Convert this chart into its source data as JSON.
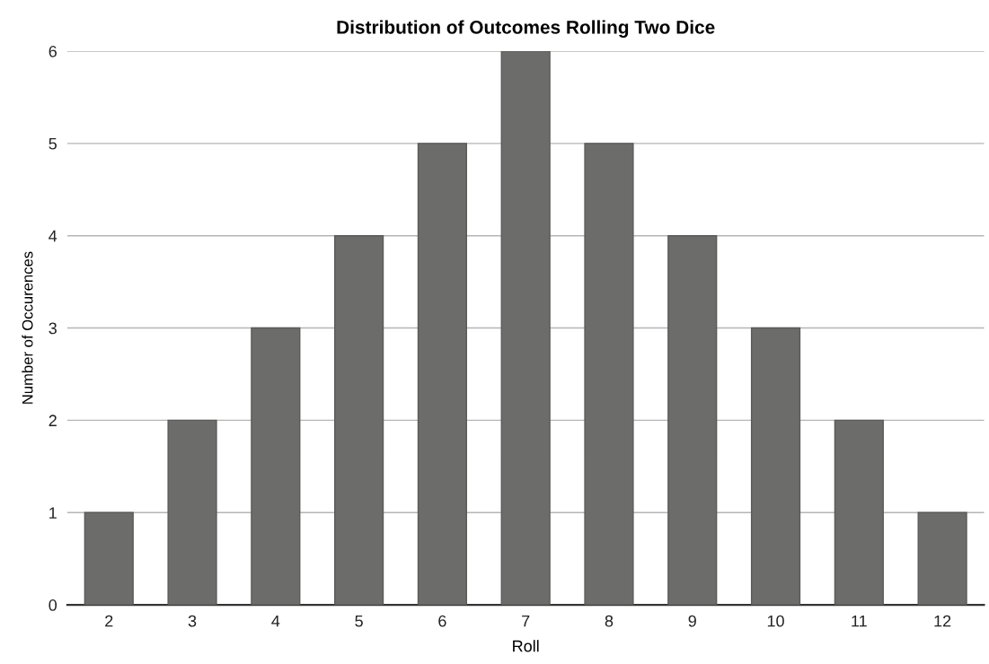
{
  "chart_data": {
    "type": "bar",
    "title": "Distribution of Outcomes Rolling Two Dice",
    "xlabel": "Roll",
    "ylabel": "Number of Occurences",
    "categories": [
      "2",
      "3",
      "4",
      "5",
      "6",
      "7",
      "8",
      "9",
      "10",
      "11",
      "12"
    ],
    "values": [
      1,
      2,
      3,
      4,
      5,
      6,
      5,
      4,
      3,
      2,
      1
    ],
    "color": "#6c6d6a",
    "ylim": [
      0,
      6
    ],
    "yticks": [
      0,
      1,
      2,
      3,
      4,
      5,
      6
    ],
    "grid": "y",
    "legend": false
  }
}
